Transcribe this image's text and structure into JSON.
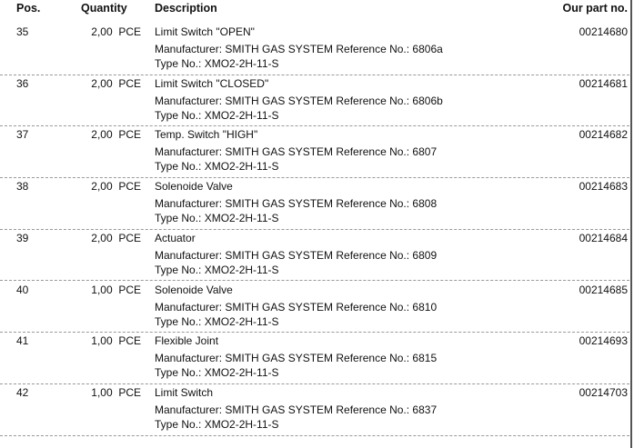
{
  "header": {
    "pos": "Pos.",
    "quantity": "Quantity",
    "description": "Description",
    "part_no": "Our part no."
  },
  "rows": [
    {
      "pos": "35",
      "qty": "2,00  PCE",
      "desc": "Limit Switch \"OPEN\"",
      "manufacturer": "Manufacturer: SMITH GAS SYSTEM Reference No.: 6806a",
      "type": "Type No.: XMO2-2H-11-S",
      "part": "00214680"
    },
    {
      "pos": "36",
      "qty": "2,00  PCE",
      "desc": "Limit Switch \"CLOSED\"",
      "manufacturer": "Manufacturer: SMITH GAS SYSTEM Reference No.: 6806b",
      "type": "Type No.: XMO2-2H-11-S",
      "part": "00214681"
    },
    {
      "pos": "37",
      "qty": "2,00  PCE",
      "desc": "Temp. Switch \"HIGH\"",
      "manufacturer": "Manufacturer: SMITH GAS SYSTEM Reference No.: 6807",
      "type": "Type No.: XMO2-2H-11-S",
      "part": "00214682"
    },
    {
      "pos": "38",
      "qty": "2,00  PCE",
      "desc": "Solenoide Valve",
      "manufacturer": "Manufacturer: SMITH GAS SYSTEM Reference No.: 6808",
      "type": "Type No.: XMO2-2H-11-S",
      "part": "00214683"
    },
    {
      "pos": "39",
      "qty": "2,00  PCE",
      "desc": "Actuator",
      "manufacturer": "Manufacturer: SMITH GAS SYSTEM Reference No.: 6809",
      "type": "Type No.: XMO2-2H-11-S",
      "part": "00214684"
    },
    {
      "pos": "40",
      "qty": "1,00  PCE",
      "desc": "Solenoide Valve",
      "manufacturer": "Manufacturer: SMITH GAS SYSTEM Reference No.: 6810",
      "type": "Type No.: XMO2-2H-11-S",
      "part": "00214685"
    },
    {
      "pos": "41",
      "qty": "1,00  PCE",
      "desc": "Flexible Joint",
      "manufacturer": "Manufacturer: SMITH GAS SYSTEM Reference No.: 6815",
      "type": "Type No.: XMO2-2H-11-S",
      "part": "00214693"
    },
    {
      "pos": "42",
      "qty": "1,00  PCE",
      "desc": "Limit Switch",
      "manufacturer": "Manufacturer: SMITH GAS SYSTEM Reference No.: 6837",
      "type": "Type No.: XMO2-2H-11-S",
      "part": "00214703"
    }
  ]
}
